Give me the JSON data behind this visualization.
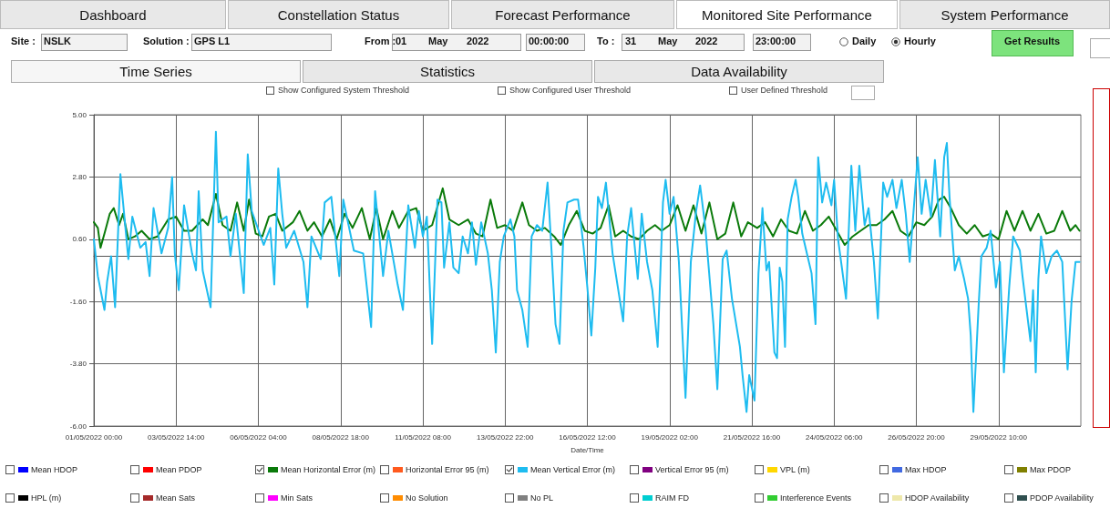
{
  "chart_data": {
    "type": "line",
    "xlabel": "Date/Time",
    "annotations": [
      "Dashboard",
      "Constellation Status",
      "Forecast Performance",
      "Monitored Site Performance",
      "System Performance",
      "Site :",
      "NSLK",
      "Solution :",
      "GPS L1",
      "From :",
      "01",
      "May",
      "2022",
      "00:00:00",
      "To :",
      "31",
      "May",
      "2022",
      "23:00:00",
      "Daily",
      "Hourly",
      "Get Results",
      "Time Series",
      "Statistics",
      "Data Availability",
      "Show Configured System Threshold",
      "Show Configured User Threshold",
      "User Defined Threshold"
    ],
    "xlim": [
      "2022-05-01T00:00",
      "2022-06-01T00:00"
    ],
    "xticks": [
      {
        "value": "2022-05-01T00:00",
        "label": "01/05/2022 00:00"
      },
      {
        "value": "2022-05-03T14:00",
        "label": "03/05/2022 14:00"
      },
      {
        "value": "2022-05-06T04:00",
        "label": "06/05/2022 04:00"
      },
      {
        "value": "2022-05-08T18:00",
        "label": "08/05/2022 18:00"
      },
      {
        "value": "2022-05-11T08:00",
        "label": "11/05/2022 08:00"
      },
      {
        "value": "2022-05-13T22:00",
        "label": "13/05/2022 22:00"
      },
      {
        "value": "2022-05-16T12:00",
        "label": "16/05/2022 12:00"
      },
      {
        "value": "2022-05-19T02:00",
        "label": "19/05/2022 02:00"
      },
      {
        "value": "2022-05-21T16:00",
        "label": "21/05/2022 16:00"
      },
      {
        "value": "2022-05-24T06:00",
        "label": "24/05/2022 06:00"
      },
      {
        "value": "2022-05-26T20:00",
        "label": "26/05/2022 20:00"
      },
      {
        "value": "2022-05-29T10:00",
        "label": "29/05/2022 10:00"
      }
    ],
    "ylim": [
      -6,
      5
    ],
    "yticks": [
      {
        "value": -6,
        "label": "-6.00"
      },
      {
        "value": -3.8,
        "label": "-3.80"
      },
      {
        "value": -1.6,
        "label": "-1.60"
      },
      {
        "value": 0.6,
        "label": "0.60"
      },
      {
        "value": 2.8,
        "label": "2.80"
      },
      {
        "value": 5,
        "label": "5.00"
      }
    ],
    "grid": true,
    "legend": "bottom",
    "series": [
      {
        "name": "Mean HDOP",
        "color": "#0000ff"
      },
      {
        "name": "Mean PDOP",
        "color": "#ff0000"
      },
      {
        "name": "Mean Horizontal Error (m)",
        "color": "#0a7a0a",
        "x": [
          "2022-05-01T00:00",
          "2022-05-01T03:00",
          "2022-05-01T05:00",
          "2022-05-01T08:00",
          "2022-05-01T12:00",
          "2022-05-01T15:00",
          "2022-05-01T19:00",
          "2022-05-01T22:00",
          "2022-05-02T02:00",
          "2022-05-02T07:00",
          "2022-05-02T12:00",
          "2022-05-02T18:00",
          "2022-05-03T00:00",
          "2022-05-03T08:00",
          "2022-05-03T14:00",
          "2022-05-03T20:00",
          "2022-05-04T02:00",
          "2022-05-04T10:00",
          "2022-05-04T14:00",
          "2022-05-04T20:00",
          "2022-05-05T01:00",
          "2022-05-05T07:00",
          "2022-05-05T12:00",
          "2022-05-05T17:00",
          "2022-05-05T21:00",
          "2022-05-06T02:00",
          "2022-05-06T07:00",
          "2022-05-06T12:00",
          "2022-05-06T17:00",
          "2022-05-06T22:00",
          "2022-05-07T06:00",
          "2022-05-07T11:00",
          "2022-05-07T17:00",
          "2022-05-07T22:00",
          "2022-05-08T04:00",
          "2022-05-08T10:00",
          "2022-05-08T15:00",
          "2022-05-08T21:00",
          "2022-05-09T03:00",
          "2022-05-09T10:00",
          "2022-05-09T16:00",
          "2022-05-09T21:00",
          "2022-05-10T02:00",
          "2022-05-10T09:00",
          "2022-05-10T14:00",
          "2022-05-10T21:00",
          "2022-05-11T03:00",
          "2022-05-11T08:00",
          "2022-05-11T15:00",
          "2022-05-11T23:00",
          "2022-05-12T04:00",
          "2022-05-12T11:00",
          "2022-05-12T18:00",
          "2022-05-13T00:00",
          "2022-05-13T05:00",
          "2022-05-13T11:00",
          "2022-05-13T16:00",
          "2022-05-13T22:00",
          "2022-05-14T04:00",
          "2022-05-14T11:00",
          "2022-05-14T16:00",
          "2022-05-14T22:00",
          "2022-05-15T04:00",
          "2022-05-15T11:00",
          "2022-05-15T16:00",
          "2022-05-15T22:00",
          "2022-05-16T04:00",
          "2022-05-16T10:00",
          "2022-05-16T16:00",
          "2022-05-16T22:00",
          "2022-05-17T04:00",
          "2022-05-17T09:00",
          "2022-05-17T15:00",
          "2022-05-17T21:00",
          "2022-05-18T03:00",
          "2022-05-18T09:00",
          "2022-05-18T15:00",
          "2022-05-18T20:00",
          "2022-05-19T02:00",
          "2022-05-19T08:00",
          "2022-05-19T14:00",
          "2022-05-19T20:00",
          "2022-05-20T02:00",
          "2022-05-20T08:00",
          "2022-05-20T14:00",
          "2022-05-20T20:00",
          "2022-05-21T02:00",
          "2022-05-21T08:00",
          "2022-05-21T13:00",
          "2022-05-21T20:00",
          "2022-05-22T02:00",
          "2022-05-22T08:00",
          "2022-05-22T14:00",
          "2022-05-22T20:00",
          "2022-05-23T02:00",
          "2022-05-23T08:00",
          "2022-05-23T14:00",
          "2022-05-23T20:00",
          "2022-05-24T02:00",
          "2022-05-24T08:00",
          "2022-05-24T14:00",
          "2022-05-24T20:00",
          "2022-05-25T02:00",
          "2022-05-25T08:00",
          "2022-05-25T14:00",
          "2022-05-25T20:00",
          "2022-05-26T02:00",
          "2022-05-26T08:00",
          "2022-05-26T14:00",
          "2022-05-26T20:00",
          "2022-05-27T02:00",
          "2022-05-27T08:00",
          "2022-05-27T13:00",
          "2022-05-27T17:00",
          "2022-05-27T22:00",
          "2022-05-28T04:00",
          "2022-05-28T10:00",
          "2022-05-28T16:00",
          "2022-05-28T22:00",
          "2022-05-29T04:00",
          "2022-05-29T10:00",
          "2022-05-29T16:00",
          "2022-05-29T22:00",
          "2022-05-30T04:00",
          "2022-05-30T10:00",
          "2022-05-30T16:00",
          "2022-05-30T22:00",
          "2022-05-31T04:00",
          "2022-05-31T10:00",
          "2022-05-31T16:00",
          "2022-05-31T20:00",
          "2022-05-31T23:00"
        ],
        "values": [
          1.2,
          1.0,
          0.3,
          0.8,
          1.5,
          1.7,
          1.1,
          1.5,
          0.6,
          0.7,
          0.9,
          0.6,
          0.7,
          1.3,
          1.4,
          0.9,
          0.9,
          1.3,
          1.1,
          2.2,
          1.1,
          0.9,
          1.9,
          0.9,
          2.0,
          0.8,
          0.7,
          1.4,
          1.5,
          0.9,
          1.2,
          1.6,
          0.9,
          1.2,
          0.7,
          1.3,
          0.6,
          1.5,
          1.0,
          1.7,
          0.6,
          1.7,
          0.6,
          1.6,
          1.0,
          1.6,
          1.7,
          0.9,
          1.1,
          2.4,
          1.3,
          1.1,
          1.3,
          0.8,
          0.7,
          2.0,
          1.0,
          1.1,
          0.9,
          1.9,
          1.1,
          0.9,
          1.0,
          0.7,
          0.4,
          1.1,
          1.6,
          0.9,
          0.8,
          1.0,
          1.8,
          0.7,
          0.9,
          0.7,
          0.6,
          0.9,
          1.1,
          0.9,
          1.1,
          1.8,
          0.9,
          1.8,
          0.8,
          1.9,
          0.6,
          0.8,
          1.9,
          0.7,
          1.2,
          1.0,
          1.2,
          0.7,
          1.3,
          0.9,
          0.8,
          1.6,
          0.9,
          1.1,
          1.4,
          0.9,
          0.4,
          0.7,
          0.9,
          1.1,
          1.1,
          1.3,
          1.6,
          0.9,
          0.7,
          1.2,
          1.1,
          1.4,
          2.0,
          2.1,
          1.7,
          1.1,
          0.8,
          1.1,
          0.7,
          0.8,
          0.6,
          1.6,
          0.9,
          1.6,
          0.9,
          1.5,
          0.8,
          0.9,
          1.6,
          0.9,
          1.1,
          0.9
        ]
      },
      {
        "name": "Horizontal Error 95 (m)",
        "color": "#ff5a1e"
      },
      {
        "name": "Mean Vertical Error (m)",
        "color": "#1ebcf0",
        "x": [
          "2022-05-01T00:00",
          "2022-05-01T03:00",
          "2022-05-01T08:00",
          "2022-05-01T10:00",
          "2022-05-01T13:00",
          "2022-05-01T16:00",
          "2022-05-01T20:00",
          "2022-05-01T22:00",
          "2022-05-02T02:00",
          "2022-05-02T05:00",
          "2022-05-02T11:00",
          "2022-05-02T15:00",
          "2022-05-02T18:00",
          "2022-05-02T21:00",
          "2022-05-03T03:00",
          "2022-05-03T08:00",
          "2022-05-03T11:00",
          "2022-05-03T13:00",
          "2022-05-03T16:00",
          "2022-05-03T20:00",
          "2022-05-04T02:00",
          "2022-05-04T05:00",
          "2022-05-04T07:00",
          "2022-05-04T10:00",
          "2022-05-04T16:00",
          "2022-05-04T20:00",
          "2022-05-04T22:00",
          "2022-05-05T04:00",
          "2022-05-05T07:00",
          "2022-05-05T11:00",
          "2022-05-05T17:00",
          "2022-05-05T20:00",
          "2022-05-05T23:00",
          "2022-05-06T08:00",
          "2022-05-06T13:00",
          "2022-05-06T16:00",
          "2022-05-06T19:00",
          "2022-05-06T22:00",
          "2022-05-07T01:00",
          "2022-05-07T07:00",
          "2022-05-07T14:00",
          "2022-05-07T17:00",
          "2022-05-07T20:00",
          "2022-05-08T03:00",
          "2022-05-08T06:00",
          "2022-05-08T11:00",
          "2022-05-08T17:00",
          "2022-05-08T20:00",
          "2022-05-09T04:00",
          "2022-05-09T11:00",
          "2022-05-09T17:00",
          "2022-05-09T20:00",
          "2022-05-10T02:00",
          "2022-05-10T06:00",
          "2022-05-10T13:00",
          "2022-05-10T17:00",
          "2022-05-10T21:00",
          "2022-05-11T02:00",
          "2022-05-11T05:00",
          "2022-05-11T08:00",
          "2022-05-11T11:00",
          "2022-05-11T15:00",
          "2022-05-11T19:00",
          "2022-05-11T22:00",
          "2022-05-12T00:00",
          "2022-05-12T04:00",
          "2022-05-12T07:00",
          "2022-05-12T11:00",
          "2022-05-12T14:00",
          "2022-05-12T18:00",
          "2022-05-12T21:00",
          "2022-05-13T00:00",
          "2022-05-13T04:00",
          "2022-05-13T09:00",
          "2022-05-13T12:00",
          "2022-05-13T15:00",
          "2022-05-13T18:00",
          "2022-05-13T21:00",
          "2022-05-14T02:00",
          "2022-05-14T05:00",
          "2022-05-14T07:00",
          "2022-05-14T11:00",
          "2022-05-14T15:00",
          "2022-05-14T18:00",
          "2022-05-14T22:00",
          "2022-05-15T02:00",
          "2022-05-15T06:00",
          "2022-05-15T09:00",
          "2022-05-15T12:00",
          "2022-05-15T15:00",
          "2022-05-15T18:00",
          "2022-05-15T21:00",
          "2022-05-16T02:00",
          "2022-05-16T05:00",
          "2022-05-16T09:00",
          "2022-05-16T12:00",
          "2022-05-16T15:00",
          "2022-05-16T18:00",
          "2022-05-16T20:00",
          "2022-05-16T23:00",
          "2022-05-17T02:00",
          "2022-05-17T07:00",
          "2022-05-17T11:00",
          "2022-05-17T15:00",
          "2022-05-17T18:00",
          "2022-05-17T21:00",
          "2022-05-18T02:00",
          "2022-05-18T05:00",
          "2022-05-18T09:00",
          "2022-05-18T13:00",
          "2022-05-18T17:00",
          "2022-05-18T21:00",
          "2022-05-18T23:00",
          "2022-05-19T02:00",
          "2022-05-19T05:00",
          "2022-05-19T09:00",
          "2022-05-19T14:00",
          "2022-05-19T18:00",
          "2022-05-19T22:00",
          "2022-05-20T01:00",
          "2022-05-20T05:00",
          "2022-05-20T11:00",
          "2022-05-20T14:00",
          "2022-05-20T18:00",
          "2022-05-20T21:00",
          "2022-05-21T01:00",
          "2022-05-21T07:00",
          "2022-05-21T09:00",
          "2022-05-21T12:00",
          "2022-05-21T14:00",
          "2022-05-21T18:00",
          "2022-05-21T21:00",
          "2022-05-22T00:00",
          "2022-05-22T03:00",
          "2022-05-22T05:00",
          "2022-05-22T09:00",
          "2022-05-22T11:00",
          "2022-05-22T13:00",
          "2022-05-22T15:00",
          "2022-05-22T17:00",
          "2022-05-22T19:00",
          "2022-05-22T22:00",
          "2022-05-23T01:00",
          "2022-05-23T03:00",
          "2022-05-23T06:00",
          "2022-05-23T09:00",
          "2022-05-23T13:00",
          "2022-05-23T16:00",
          "2022-05-23T18:00",
          "2022-05-23T21:00",
          "2022-05-24T00:00",
          "2022-05-24T04:00",
          "2022-05-24T06:00",
          "2022-05-24T09:00",
          "2022-05-24T15:00",
          "2022-05-24T19:00",
          "2022-05-24T22:00",
          "2022-05-25T01:00",
          "2022-05-25T05:00",
          "2022-05-25T08:00",
          "2022-05-25T12:00",
          "2022-05-25T15:00",
          "2022-05-25T19:00",
          "2022-05-25T22:00",
          "2022-05-26T02:00",
          "2022-05-26T05:00",
          "2022-05-26T09:00",
          "2022-05-26T12:00",
          "2022-05-26T15:00",
          "2022-05-26T21:00",
          "2022-05-27T00:00",
          "2022-05-27T03:00",
          "2022-05-27T07:00",
          "2022-05-27T10:00",
          "2022-05-27T14:00",
          "2022-05-27T17:00",
          "2022-05-27T19:00",
          "2022-05-27T21:00",
          "2022-05-28T01:00",
          "2022-05-28T04:00",
          "2022-05-28T08:00",
          "2022-05-28T11:00",
          "2022-05-28T13:00",
          "2022-05-28T15:00",
          "2022-05-28T19:00",
          "2022-05-28T21:00",
          "2022-05-29T01:00",
          "2022-05-29T04:00",
          "2022-05-29T08:00",
          "2022-05-29T11:00",
          "2022-05-29T14:00",
          "2022-05-29T18:00",
          "2022-05-29T21:00",
          "2022-05-30T02:00",
          "2022-05-30T04:00",
          "2022-05-30T10:00",
          "2022-05-30T12:00",
          "2022-05-30T14:00",
          "2022-05-30T16:00",
          "2022-05-30T18:00",
          "2022-05-30T22:00",
          "2022-05-31T02:00",
          "2022-05-31T06:00",
          "2022-05-31T10:00",
          "2022-05-31T14:00",
          "2022-05-31T17:00",
          "2022-05-31T20:00",
          "2022-05-31T23:00"
        ],
        "values": [
          0.6,
          -0.7,
          -1.9,
          -0.9,
          0.0,
          -1.8,
          2.9,
          1.9,
          -0.1,
          1.4,
          0.3,
          0.5,
          -0.7,
          1.7,
          0.1,
          1.0,
          2.8,
          0.1,
          -1.2,
          1.8,
          0.1,
          -0.5,
          2.3,
          -0.5,
          -1.8,
          4.4,
          1.2,
          1.4,
          0.0,
          1.5,
          -1.3,
          3.6,
          1.6,
          0.4,
          1.0,
          -1.0,
          3.1,
          1.5,
          0.3,
          0.9,
          -0.2,
          -1.8,
          0.7,
          -0.1,
          1.9,
          2.1,
          -0.7,
          2.0,
          0.2,
          0.1,
          -2.5,
          2.3,
          -0.7,
          0.9,
          -1.0,
          -1.9,
          1.8,
          0.3,
          1.6,
          0.7,
          1.4,
          -3.1,
          2.0,
          1.9,
          -0.4,
          1.2,
          -0.4,
          -0.6,
          0.7,
          0.1,
          1.2,
          -0.3,
          1.2,
          0.1,
          -1.2,
          -3.4,
          -0.2,
          0.7,
          1.3,
          0.7,
          -1.2,
          -1.9,
          -3.2,
          0.7,
          1.1,
          0.9,
          2.6,
          0.2,
          -2.4,
          -3.1,
          0.9,
          1.9,
          2.0,
          2.0,
          0.4,
          -1.1,
          -2.8,
          -0.4,
          2.1,
          1.7,
          2.6,
          0.1,
          -1.1,
          -2.3,
          0.7,
          1.7,
          -0.8,
          1.5,
          -0.2,
          -1.2,
          -3.2,
          1.9,
          2.7,
          1.5,
          2.1,
          -0.2,
          -5.0,
          -0.2,
          1.6,
          2.5,
          1.0,
          -2.4,
          -4.7,
          -0.1,
          0.2,
          -1.5,
          -3.2,
          -4.2,
          -5.5,
          -4.2,
          -5.1,
          -0.6,
          1.7,
          -0.5,
          -0.2,
          -3.4,
          -3.6,
          -0.4,
          -0.9,
          -3.2,
          1.3,
          2.1,
          2.7,
          2.1,
          0.8,
          0.2,
          -0.6,
          -2.4,
          3.5,
          1.9,
          2.6,
          1.8,
          2.7,
          0.6,
          -1.5,
          3.2,
          0.9,
          3.2,
          1.1,
          1.7,
          -0.2,
          -2.2,
          2.6,
          2.1,
          2.7,
          1.7,
          2.7,
          1.5,
          -0.2,
          3.5,
          1.5,
          2.7,
          1.4,
          3.4,
          0.7,
          3.5,
          4.0,
          2.1,
          -0.5,
          0.0,
          -0.8,
          -1.5,
          -2.8,
          -5.5,
          -1.7,
          0.0,
          0.3,
          0.9,
          -1.1,
          -0.2,
          -4.1,
          -1.1,
          0.7,
          0.2,
          -0.7,
          -3.0,
          -1.2,
          -4.1,
          -0.8,
          0.7,
          -0.6,
          0.0,
          0.2,
          -0.2,
          -4.0,
          -1.6,
          -0.2,
          -0.2
        ]
      },
      {
        "name": "Vertical Error 95 (m)",
        "color": "#800080"
      },
      {
        "name": "VPL (m)",
        "color": "#ffd700"
      },
      {
        "name": "Max HDOP",
        "color": "#4169e1"
      },
      {
        "name": "Max PDOP",
        "color": "#808000"
      },
      {
        "name": "HPL (m)",
        "color": "#000000"
      },
      {
        "name": "Mean Sats",
        "color": "#a52a2a"
      },
      {
        "name": "Min Sats",
        "color": "#ff00ff"
      },
      {
        "name": "No Solution",
        "color": "#ff8c00"
      },
      {
        "name": "No PL",
        "color": "#808080"
      },
      {
        "name": "RAIM FD",
        "color": "#00ced1"
      },
      {
        "name": "Interference Events",
        "color": "#32cd32"
      },
      {
        "name": "HDOP Availability",
        "color": "#eee8aa"
      },
      {
        "name": "PDOP Availability",
        "color": "#2f4f4f"
      }
    ]
  }
}
